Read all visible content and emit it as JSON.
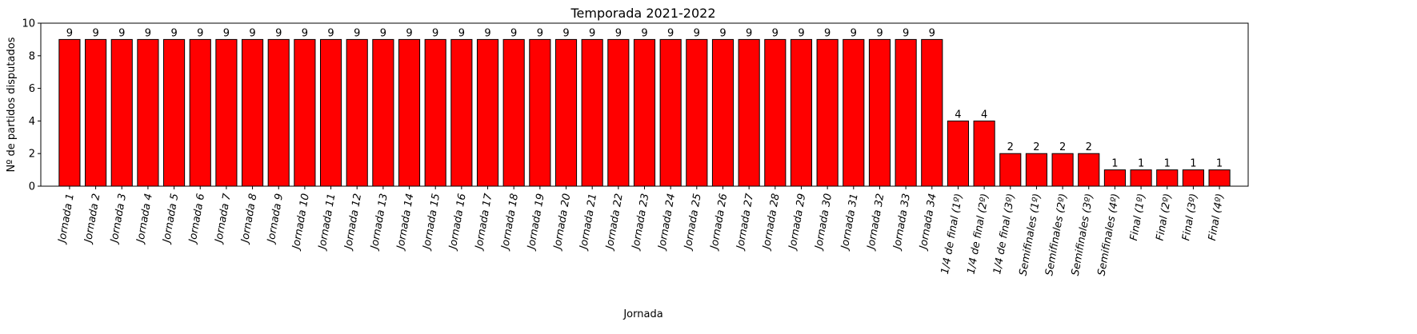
{
  "chart_data": {
    "type": "bar",
    "title": "Temporada 2021-2022",
    "xlabel": "Jornada",
    "ylabel": "Nº de partidos disputados",
    "ylim": [
      0,
      10
    ],
    "yticks": [
      0,
      2,
      4,
      6,
      8,
      10
    ],
    "grid": false,
    "legend": "none",
    "bar_color": "#ff0000",
    "bar_edge_color": "#000000",
    "categories": [
      "Jornada 1",
      "Jornada 2",
      "Jornada 3",
      "Jornada 4",
      "Jornada 5",
      "Jornada 6",
      "Jornada 7",
      "Jornada 8",
      "Jornada 9",
      "Jornada 10",
      "Jornada 11",
      "Jornada 12",
      "Jornada 13",
      "Jornada 14",
      "Jornada 15",
      "Jornada 16",
      "Jornada 17",
      "Jornada 18",
      "Jornada 19",
      "Jornada 20",
      "Jornada 21",
      "Jornada 22",
      "Jornada 23",
      "Jornada 24",
      "Jornada 25",
      "Jornada 26",
      "Jornada 27",
      "Jornada 28",
      "Jornada 29",
      "Jornada 30",
      "Jornada 31",
      "Jornada 32",
      "Jornada 33",
      "Jornada 34",
      "1/4 de final (1º)",
      "1/4 de final (2º)",
      "1/4 de final (3º)",
      "Semifinales (1º)",
      "Semifinales (2º)",
      "Semifinales (3º)",
      "Semifinales (4º)",
      "Final (1º)",
      "Final (2º)",
      "Final (3º)",
      "Final (4º)"
    ],
    "values": [
      9,
      9,
      9,
      9,
      9,
      9,
      9,
      9,
      9,
      9,
      9,
      9,
      9,
      9,
      9,
      9,
      9,
      9,
      9,
      9,
      9,
      9,
      9,
      9,
      9,
      9,
      9,
      9,
      9,
      9,
      9,
      9,
      9,
      9,
      4,
      4,
      2,
      2,
      2,
      2,
      1,
      1,
      1,
      1,
      1
    ]
  }
}
